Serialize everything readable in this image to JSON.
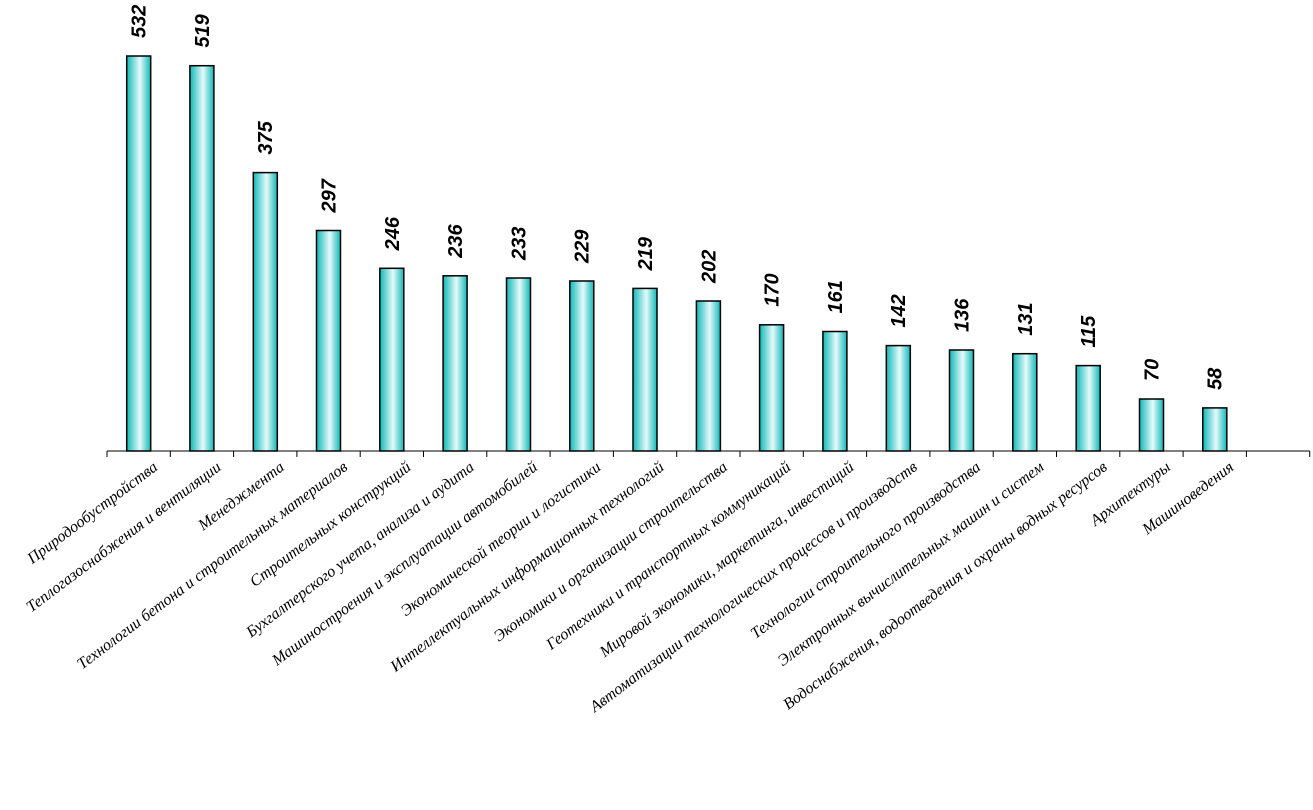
{
  "chart_data": {
    "type": "bar",
    "orientation": "vertical",
    "title": "",
    "xlabel": "",
    "ylabel": "",
    "grid": false,
    "legend": "none",
    "ylim": [
      0,
      532
    ],
    "categories": [
      "Природообустройства",
      "Теплогазоснабжения и вентиляции",
      "Менеджмента",
      "Технологии бетона и строительных материалов",
      "Строительных конструкций",
      "Бухгалтерского учета, анализа и аудита",
      "Машиностроения и эксплуатации автомобилей",
      "Экономической теории и логистики",
      "Интеллектуальных информационных технологий",
      "Экономики и организации строительства",
      "Геотехники и транспортных коммуникаций",
      "Мировой экономики, маркетинга, инвестиций",
      "Автоматизации технологических процессов и производств",
      "Технологии строительного производства",
      "Электронных вычислительных машин и систем",
      "Водоснабжения, водоотведения и охраны водных ресурсов",
      "Архитектуры",
      "Машиноведения"
    ],
    "values": [
      532,
      519,
      375,
      297,
      246,
      236,
      233,
      229,
      219,
      202,
      170,
      161,
      142,
      136,
      131,
      115,
      70,
      58
    ],
    "value_labels": [
      "532",
      "519",
      "375",
      "297",
      "246",
      "236",
      "233",
      "229",
      "219",
      "202",
      "170",
      "161",
      "142",
      "136",
      "131",
      "115",
      "70",
      "58"
    ],
    "colors": {
      "bar_edge": "#0fb8b8",
      "bar_center": "#e6fafa",
      "outline": "#000000"
    }
  }
}
